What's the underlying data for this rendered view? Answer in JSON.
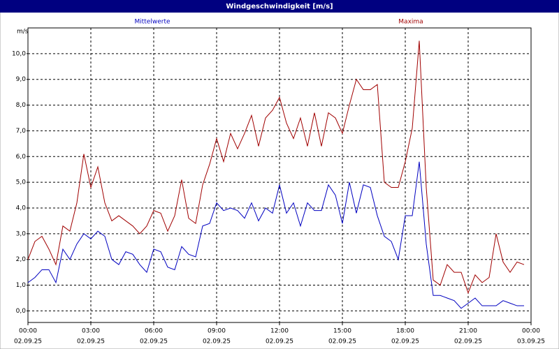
{
  "chart_data": {
    "type": "line",
    "title": "Windgeschwindigkeit [m/s]",
    "y_label": "m/s",
    "x": [
      0,
      20,
      40,
      60,
      80,
      100,
      120,
      140,
      160,
      180,
      200,
      220,
      240,
      260,
      280,
      300,
      320,
      340,
      360,
      380,
      400,
      420,
      440,
      460,
      480,
      500,
      520,
      540,
      560,
      580,
      600,
      620,
      640,
      660,
      680,
      700,
      720,
      740,
      760,
      780,
      800,
      820,
      840,
      860,
      880,
      900,
      920,
      940,
      960,
      980,
      1000,
      1020,
      1040,
      1060,
      1080,
      1100,
      1120,
      1140,
      1160,
      1180,
      1200,
      1220,
      1240,
      1260,
      1280,
      1300,
      1320,
      1340,
      1360,
      1380,
      1400,
      1420
    ],
    "series": [
      {
        "name": "Mittelwerte",
        "color": "#0000c0",
        "values": [
          1.1,
          1.3,
          1.6,
          1.6,
          1.1,
          2.4,
          2.0,
          2.6,
          3.0,
          2.8,
          3.1,
          2.9,
          2.0,
          1.8,
          2.3,
          2.2,
          1.8,
          1.5,
          2.4,
          2.3,
          1.7,
          1.6,
          2.5,
          2.2,
          2.1,
          3.3,
          3.4,
          4.2,
          3.9,
          4.0,
          3.9,
          3.6,
          4.2,
          3.5,
          4.0,
          3.8,
          4.9,
          3.8,
          4.2,
          3.3,
          4.2,
          3.9,
          3.9,
          4.9,
          4.5,
          3.4,
          5.0,
          3.8,
          4.9,
          4.8,
          3.7,
          2.9,
          2.7,
          2.0,
          3.7,
          3.7,
          5.8,
          2.6,
          0.6,
          0.6,
          0.5,
          0.4,
          0.1,
          0.3,
          0.5,
          0.2,
          0.2,
          0.2,
          0.4,
          0.3,
          0.2,
          0.2
        ]
      },
      {
        "name": "Maxima",
        "color": "#a00000",
        "values": [
          2.0,
          2.7,
          2.9,
          2.4,
          1.8,
          3.3,
          3.1,
          4.2,
          6.1,
          4.8,
          5.6,
          4.2,
          3.5,
          3.7,
          3.5,
          3.3,
          3.0,
          3.3,
          3.9,
          3.8,
          3.1,
          3.7,
          5.1,
          3.6,
          3.4,
          4.9,
          5.7,
          6.7,
          5.8,
          6.9,
          6.3,
          6.9,
          7.6,
          6.4,
          7.5,
          7.8,
          8.3,
          7.3,
          6.7,
          7.5,
          6.4,
          7.7,
          6.4,
          7.7,
          7.5,
          6.9,
          8.0,
          9.0,
          8.6,
          8.6,
          8.8,
          5.0,
          4.8,
          4.8,
          5.8,
          7.1,
          10.5,
          4.8,
          1.2,
          1.0,
          1.8,
          1.5,
          1.5,
          0.7,
          1.4,
          1.1,
          1.3,
          3.0,
          1.9,
          1.5,
          1.9,
          1.8
        ]
      }
    ],
    "xlim": [
      0,
      1440
    ],
    "xticks": [
      {
        "value": 0,
        "label": "00:00"
      },
      {
        "value": 180,
        "label": "03:00"
      },
      {
        "value": 360,
        "label": "06:00"
      },
      {
        "value": 540,
        "label": "09:00"
      },
      {
        "value": 720,
        "label": "12:00"
      },
      {
        "value": 900,
        "label": "15:00"
      },
      {
        "value": 1080,
        "label": "18:00"
      },
      {
        "value": 1260,
        "label": "21:00"
      },
      {
        "value": 1440,
        "label": "00:00"
      }
    ],
    "xtick_dates": [
      "02.09.25",
      "02.09.25",
      "02.09.25",
      "02.09.25",
      "02.09.25",
      "02.09.25",
      "02.09.25",
      "02.09.25",
      "03.09.25"
    ],
    "ylim": [
      -0.45,
      11.0
    ],
    "yticks": [
      {
        "value": 0,
        "label": "0,0"
      },
      {
        "value": 1,
        "label": "1,0"
      },
      {
        "value": 2,
        "label": "2,0"
      },
      {
        "value": 3,
        "label": "3,0"
      },
      {
        "value": 4,
        "label": "4,0"
      },
      {
        "value": 5,
        "label": "5,0"
      },
      {
        "value": 6,
        "label": "6,0"
      },
      {
        "value": 7,
        "label": "7,0"
      },
      {
        "value": 8,
        "label": "8,0"
      },
      {
        "value": 9,
        "label": "9,0"
      },
      {
        "value": 10,
        "label": "10,0"
      }
    ],
    "grid": true
  }
}
